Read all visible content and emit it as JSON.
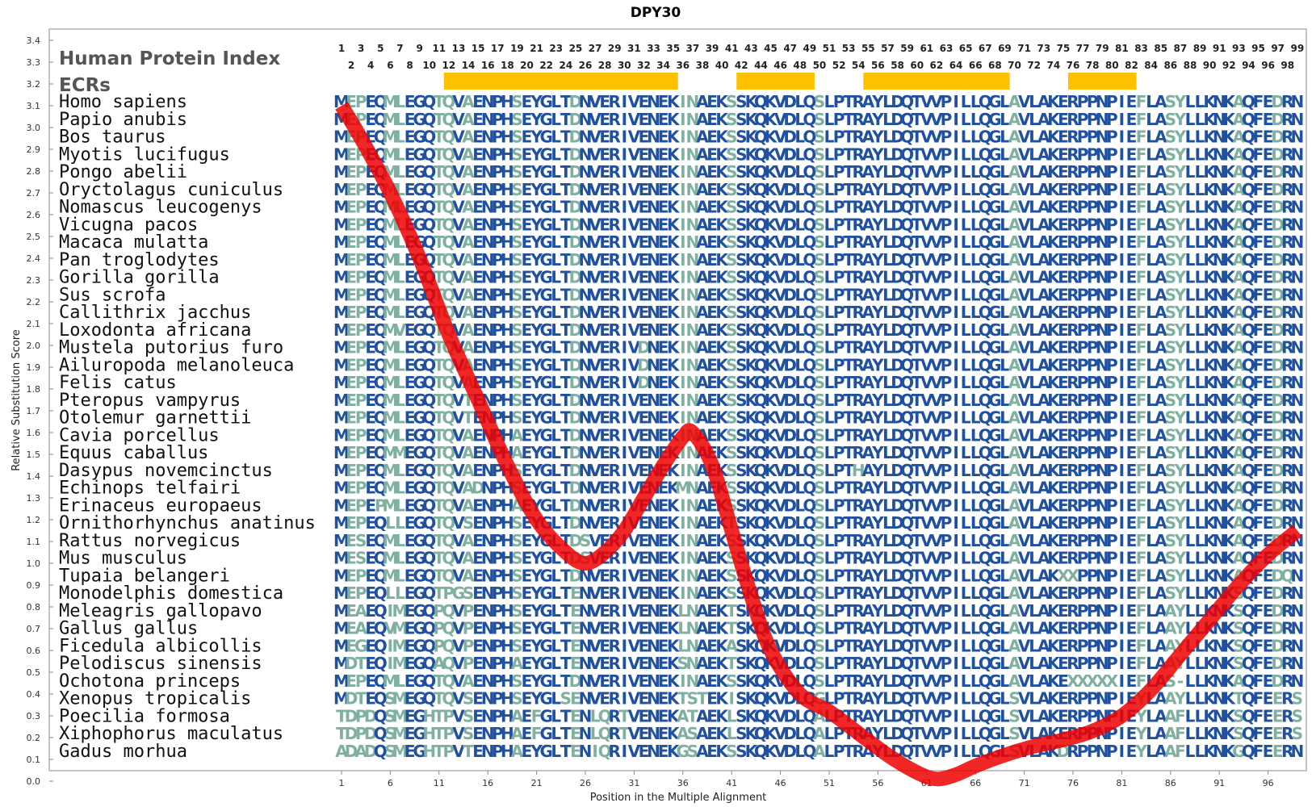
{
  "chart_data": {
    "type": "line",
    "title": "DPY30",
    "xlabel": "Position in the Multiple Alignment",
    "ylabel": "Relative Substitution Score",
    "ylim": [
      0,
      3.4
    ],
    "xlim": [
      1,
      99
    ],
    "y_ticks": [
      "0.0",
      "0.1",
      "0.2",
      "0.3",
      "0.4",
      "0.5",
      "0.6",
      "0.7",
      "0.8",
      "0.9",
      "1.0",
      "1.1",
      "1.2",
      "1.3",
      "1.4",
      "1.5",
      "1.6",
      "1.7",
      "1.8",
      "1.9",
      "2.0",
      "2.1",
      "2.2",
      "2.3",
      "2.4",
      "2.5",
      "2.6",
      "2.7",
      "2.8",
      "2.9",
      "3.0",
      "3.1",
      "3.2",
      "3.3",
      "3.4"
    ],
    "x_ticks": [
      "1",
      "6",
      "11",
      "16",
      "21",
      "26",
      "31",
      "36",
      "41",
      "46",
      "51",
      "56",
      "61",
      "66",
      "71",
      "76",
      "81",
      "86",
      "91",
      "96"
    ],
    "header_label": "Human Protein Index",
    "ecr_label": "ECRs",
    "odd_positions": [
      "1",
      "3",
      "5",
      "7",
      "9",
      "11",
      "13",
      "15",
      "17",
      "19",
      "21",
      "23",
      "25",
      "27",
      "29",
      "31",
      "33",
      "35",
      "37",
      "39",
      "41",
      "43",
      "45",
      "47",
      "49",
      "51",
      "53",
      "55",
      "57",
      "59",
      "61",
      "63",
      "65",
      "67",
      "69",
      "71",
      "73",
      "75",
      "77",
      "79",
      "81",
      "83",
      "85",
      "87",
      "89",
      "91",
      "93",
      "95",
      "97",
      "99"
    ],
    "even_positions": [
      "2",
      "4",
      "6",
      "8",
      "10",
      "12",
      "14",
      "16",
      "18",
      "20",
      "22",
      "24",
      "26",
      "28",
      "30",
      "32",
      "34",
      "36",
      "38",
      "40",
      "42",
      "44",
      "46",
      "48",
      "50",
      "52",
      "54",
      "56",
      "58",
      "60",
      "62",
      "64",
      "66",
      "68",
      "70",
      "72",
      "74",
      "76",
      "78",
      "80",
      "82",
      "84",
      "86",
      "88",
      "90",
      "92",
      "94",
      "96",
      "98"
    ],
    "ecrs": [
      {
        "start": 12,
        "end": 35
      },
      {
        "start": 42,
        "end": 49
      },
      {
        "start": 55,
        "end": 69
      },
      {
        "start": 76,
        "end": 82
      }
    ],
    "ecr_color": "#ffc000",
    "line_color": "#ee0000",
    "residue_color_conserved": "#2050a0",
    "residue_color_variable": "#7fb0a0",
    "score_curve": {
      "x": [
        1,
        3,
        6,
        9,
        12,
        15,
        18,
        21,
        24,
        26,
        28,
        30,
        32,
        34,
        36,
        37,
        39,
        41,
        43,
        45,
        48,
        51,
        54,
        57,
        60,
        62,
        64,
        66,
        69,
        72,
        75,
        78,
        81,
        84,
        87,
        90,
        93,
        96,
        99
      ],
      "y": [
        3.1,
        2.95,
        2.7,
        2.4,
        2.05,
        1.75,
        1.45,
        1.2,
        1.05,
        1.0,
        1.05,
        1.15,
        1.3,
        1.45,
        1.58,
        1.6,
        1.45,
        1.15,
        0.85,
        0.6,
        0.4,
        0.32,
        0.22,
        0.12,
        0.04,
        0.01,
        0.03,
        0.07,
        0.12,
        0.16,
        0.19,
        0.23,
        0.3,
        0.42,
        0.58,
        0.74,
        0.9,
        1.04,
        1.15
      ]
    },
    "sequences": [
      {
        "species": "Homo sapiens",
        "seq": "MEPEQMLEGQTQVAENPHSEYGLTDNVERIVENEKINAEKSSKQKVDLQSLPTRAYLDQTVVPILLQGLAVLAKERPPNPIEFLASYLLKNKAQFEDRN"
      },
      {
        "species": "Papio anubis",
        "seq": "MEPEQMLEGQTQVAENPHSEYGLTDNVERIVENEKINAEKSSKQKVDLQSLPTRAYLDQTVVPILLQGLAVLAKERPPNPIEFLASYLLKNKAQFEDRN"
      },
      {
        "species": "Bos taurus",
        "seq": "MEPEQMLEGQTQVAENPHSEYGLTDNVERIVENEKINAEKSSKQKVDLQSLPTRAYLDQTVVPILLQGLAVLAKERPPNPIEFLASYLLKNKAQFEDRN"
      },
      {
        "species": "Myotis lucifugus",
        "seq": "MEPEQMLEGQTQVAENPHSEYGLTDNVERIVENEKINAEKSSKQKVDLQSLPTRAYLDQTVVPILLQGLAVLAKERPPNPIEFLASYLLKNKAQFEDRN"
      },
      {
        "species": "Pongo abelii",
        "seq": "MEPEQMLEGQTQVAENPHSEYGLTDNVERIVENEKINAEKSSKQKVDLQSLPTRAYLDQTVVPILLQGLAVLAKERPPNPIEFLASYLLKNKAQFEDRN"
      },
      {
        "species": "Oryctolagus cuniculus",
        "seq": "MEPEQMLEGQTQVAENPHSEYGLTDNVERIVENEKINAEKSSKQKVDLQSLPTRAYLDQTVVPILLQGLAVLAKERPPNPIEFLASYLLKNKAQFEDRN"
      },
      {
        "species": "Nomascus leucogenys",
        "seq": "MEPEQMLEGQTQVAENPHSEYGLTDNVERIVENEKINAEKSSKQKVDLQSLPTRAYLDQTVVPILLQGLAVLAKERPPNPIEFLASYLLKNKAQFEDRN"
      },
      {
        "species": "Vicugna pacos",
        "seq": "MEPEQMLEGQTQVAENPHSEYGLTDNVERIVENEKINAEKSSKQKVDLQSLPTRAYLDQTVVPILLQGLAVLAKERPPNPIEFLASYLLKNKAQFEDRN"
      },
      {
        "species": "Macaca mulatta",
        "seq": "MEPEQMLEGQTQVAENPHSEYGLTDNVERIVENEKINAEKSSKQKVDLQSLPTRAYLDQTVVPILLQGLAVLAKERPPNPIEFLASYLLKNKAQFEDRN"
      },
      {
        "species": "Pan troglodytes",
        "seq": "MEPEQMLEGQTQVAENPHSEYGLTDNVERIVENEKINAEKSSKQKVDLQSLPTRAYLDQTVVPILLQGLAVLAKERPPNPIEFLASYLLKNKAQFEDRN"
      },
      {
        "species": "Gorilla gorilla",
        "seq": "MEPEQMLEGQTQVAENPHSEYGLTDNVERIVENEKINAEKSSKQKVDLQSLPTRAYLDQTVVPILLQGLAVLAKERPPNPIEFLASYLLKNKAQFEDRN"
      },
      {
        "species": "Sus scrofa",
        "seq": "MEPEQMLEGQTQVAENPHSEYGLTDNVERIVENEKINAEKSSKQKVDLQSLPTRAYLDQTVVPILLQGLAVLAKERPPNPIEFLASYLLKNKAQFEDRN"
      },
      {
        "species": "Callithrix jacchus",
        "seq": "MEPEQMLEGQTQVAENPHSEYGLTDNVERIVENEKINAEKSSKQKVDLQSLPTRAYLDQTVVPILLQGLAVLAKERPPNPIEFLASYLLKNKAQFEDRN"
      },
      {
        "species": "Loxodonta africana",
        "seq": "MEPEQMVEGQTQVAENPHSEYGLTDNVERIVENEKINAEKSSKQKVDLQSLPTRAYLDQTVVPILLQGLAVLAKERPPNPIEFLASYLLKNKAQFEDRN"
      },
      {
        "species": "Mustela putorius furo",
        "seq": "MEPEQMLEGQTQVAENPHSEYGLTDNVERIVDNEKINAEKSSKQKVDLQSLPTRAYLDQTVVPILLQGLAVLAKERPPNPIEFLASYLLKNKAQFEDRN"
      },
      {
        "species": "Ailuropoda melanoleuca",
        "seq": "MEPEQMLEGQTQVAENPHSEYGLTDNVERIVDNEKINAEKSSKQKVDLQSLPTRAYLDQTVVPILLQGLAVLAKERPPNPIEFLASYLLKNKAQFEDRN"
      },
      {
        "species": "Felis catus",
        "seq": "MEPEQMLEGQTQVAENPHSEYGLTDNVERIVDNEKINAEKSSKQKVDLQSLPTRAYLDQTVVPILLQGLAVLAKERPPNPIEFLASYLLKNKAQFEDRN"
      },
      {
        "species": "Pteropus vampyrus",
        "seq": "MEPEQMLEGQTQVTENPHSEYGLTDNVERIVENEKINAEKSSKQKVDLQSLPTRAYLDQTVVPILLQGLAVLAKERPPNPIEFLASYLLKNKAQFEDRN"
      },
      {
        "species": "Otolemur garnettii",
        "seq": "MEPEQMLEGQTQVTENPHSEYGLTDNVERIVENEKINAEKSSKQKVDLQSLPTRAYLDQTVVPILLQGLAVLAKERPPNPIEFLASYLLKNKAQFEDRN"
      },
      {
        "species": "Cavia porcellus",
        "seq": "MEPEQMLEGQTQVAENPHAEYGLTDNVERIVENEKINAEKSSKQKVDLQSLPTRAYLDQTVVPILLQGLAVLAKERPPNPIEFLASYLLKNKAQFEDRN"
      },
      {
        "species": "Equus caballus",
        "seq": "MEPEQMMEGQTQVAENPHAEYGLTDNVERIVENEKINAEKSSKQKVDLQSLPTRAYLDQTVVPILLQGLAVLAKERPPNPIEFLASYLLKNKAQFEDRN"
      },
      {
        "species": "Dasypus novemcinctus",
        "seq": "MEPEQMLEGQTQVAENPHSEYGLTDNVERIVENEKINAEKSSKQKVDLQSLPTHAYLDQTVVPILLQGLAVLAKERPPNPIEFLASYLLKNKAQFEDRN"
      },
      {
        "species": "Echinops telfairi",
        "seq": "MEPEQMLEGQTQVADNPHSEYGLTDNVERIVENEKMNAEKSSKQKVDLQSLPTRAYLDQTVVPILLQGLAVLAKERPPNPIEFLASYLLKNKAQFEDRN"
      },
      {
        "species": "Erinaceus europaeus",
        "seq": "MEPEPMLEGQTQVAENPHAEYGLTDNVERIVENEKINAEKSSKQKVDLQSLPTRAYLDQTVVPILLQGLAVLAKERPPNPIEFLASYLLKNKAQFEDRN"
      },
      {
        "species": "Ornithorhynchus anatinus",
        "seq": "MEPEQLLEGQTQVSENPHSEYGLTDNVERIVENEKINAEKTSKQKVDLQSLPTRAYLDQTVVPILLQGLAVLAKERPPNPIEFLASYLLKNKAQFEDRN"
      },
      {
        "species": "Rattus norvegicus",
        "seq": "MESEQMLEGQTQVAENPHSEYGLTDSVERIVENEKINAEKSSKQKVDLQSLPTRAYLDQTVVPILLQGLAVLAKERPPNPIEFLASYLLKNKAQFEDRN"
      },
      {
        "species": "Mus musculus",
        "seq": "MESEQMLEGQTQVAENPHSEYGLTDSVERIVENEKINAEKSSKQKVDLQSLPTRAYLDQTVVPILLQGLAVLAKERPPNPIEFLASYLLKNKAQFEDRN"
      },
      {
        "species": "Tupaia belangeri",
        "seq": "MEPEQMLEGQTQVAENPHSEYGLTDNVERIVENEKINAEKSSKQKVDLQSLPTRAYLDQTVVPILLQGLAVLAKXXPPNPIEFLASYLLKNKAQFEDQN"
      },
      {
        "species": "Monodelphis domestica",
        "seq": "MEPEQLLEGQTPGSENPHSEYGLTENVERIVENEKINAEKSSKQKVDLQSLPTRAYLDQTVVPILLQGLAVLAKERPPNPIEFLASYLLKNKSQFEDRN"
      },
      {
        "species": "Meleagris gallopavo",
        "seq": "MEAEQIMEGQPQVPENPHSEYGLTENVERIVENEKLNAEKTSKQKVDLQSLPTRAYLDQTVVPILLQGLAVLAKERPPNPIEFLAAYLLKNKSQFEDRN"
      },
      {
        "species": "Gallus gallus",
        "seq": "MEAEQVMEGQPQVPENPHSEYGLTENVERIVENEKLNAEKTSKQKVDLQSLPTRAYLDQTVVPILLQGLAVLAKERPPNPIEFLAAYLLKNKSQFEDRN"
      },
      {
        "species": "Ficedula albicollis",
        "seq": "MEGEQIMEGQPQVPENPHSEYGLTENVERIVENEKLNAEKASKQKVDLQSLPTRAYLDQTVVPILLQGLAVLAKERPPNPIEFLAAYLLKNKSQFEDRN"
      },
      {
        "species": "Pelodiscus sinensis",
        "seq": "MDTEQIMEGQAQVPENPHAEYGLTENVERIVENEKSNAEKTSKQKVDLQSLPTRAYLDQTVVPILLQGLAVLAKERPPNPIEFLAAYLLKNKSQFEDRN"
      },
      {
        "species": "Ochotona princeps",
        "seq": "MEPEQMLEGQTQVAENPHSEYGLTDNVERIVENEKINAEKSSKQKVDLQSLPTRAYLDQTVVPILLQGLAVLAKEXXXXXIEFLAS-LLKNKAQFEDRN"
      },
      {
        "species": "Xenopus tropicalis",
        "seq": "MDTEQSMEGQTQVSENPHSEYGLSENVERIVENEKTSTEKISKQKVDLQGLPTRAYLDQTVVPILLQGLSVLAKERPPNPIEYLAAYLLKNKTQFEERS"
      },
      {
        "species": "Poecilia formosa",
        "seq": "TDPDQSMEGHTPVSENPHAEFGLTENLQRTVENEKATAEKLSKQKVDLQALPTRAYLDQTVVPILLQGLSVLAKERPPNPIEYLAAFLLKNKSQFEERS"
      },
      {
        "species": "Xiphophorus maculatus",
        "seq": "TDPDQSMEGHTPVSENPHAEFGLTENLQRTVENEKASAEKLSKQKVDLQALPTRAYLDQTVVPILLQGLSVLAKERPPNPIEYLAAFLLKNKSQFEERS"
      },
      {
        "species": "Gadus morhua",
        "seq": "ADADQSMEGHTPVTENPHAEYGLTENIQRIVENEKGSAEKSSKQKVDLQALPTRAYLDQTVVPILLQGLSVLAKDRPPNPIEYLAAFLLKNKGQFEERN"
      }
    ]
  }
}
